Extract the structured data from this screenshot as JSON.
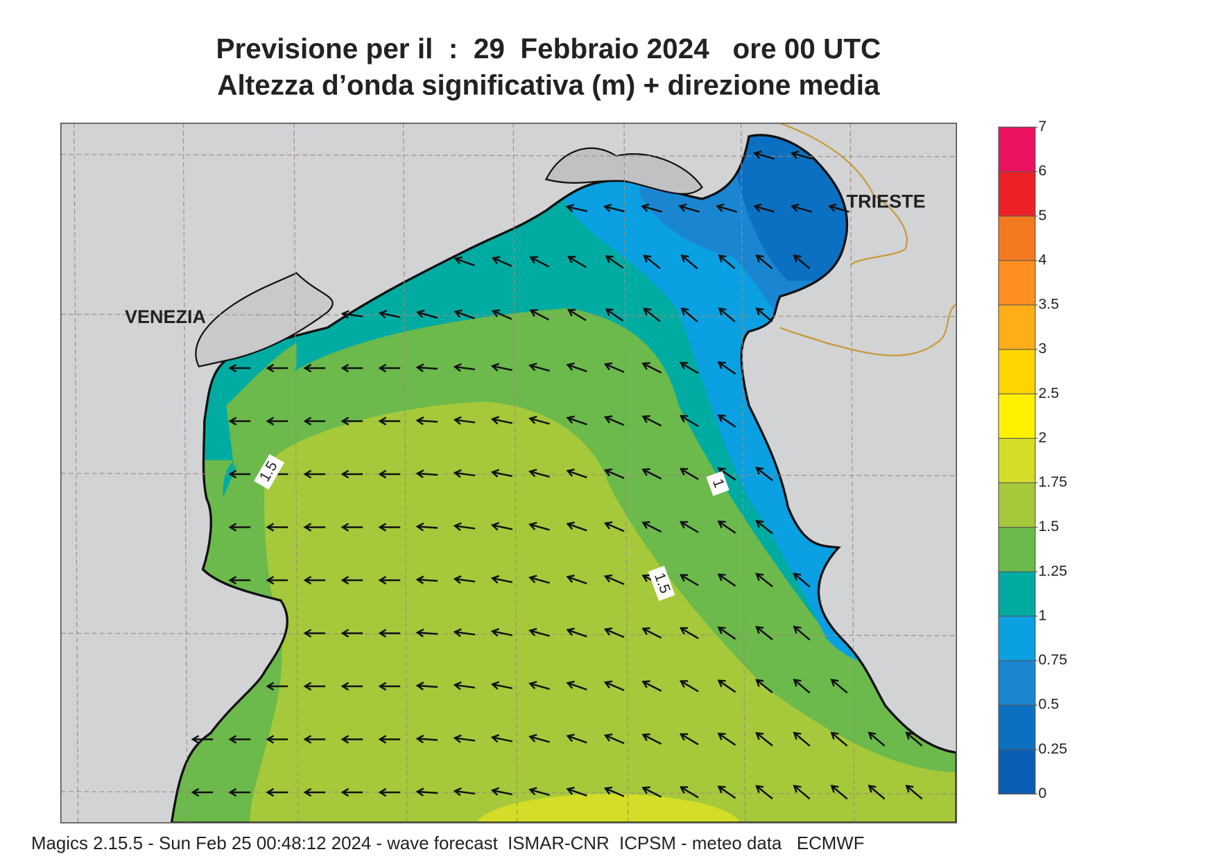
{
  "header": {
    "title": "Previsione per il  :  29  Febbraio 2024   ore 00 UTC",
    "subtitle": "Altezza d’onda significativa (m) + direzione media"
  },
  "map": {
    "places": [
      "VENEZIA",
      "TRIESTE"
    ],
    "contour_labels": [
      "1.5",
      "1",
      "1.5"
    ]
  },
  "legend": {
    "ticks": [
      0,
      0.25,
      0.5,
      0.75,
      1,
      1.25,
      1.5,
      1.75,
      2,
      2.5,
      3,
      3.5,
      4,
      5,
      6,
      7
    ],
    "colors": [
      "#0a5fb4",
      "#0c70c2",
      "#1a86d2",
      "#0aa0e2",
      "#00aba2",
      "#6cb94c",
      "#a5c93a",
      "#d4dd28",
      "#fff200",
      "#ffd400",
      "#ffae18",
      "#ff9020",
      "#f47a22",
      "#ec2228",
      "#ec1262"
    ]
  },
  "footer": "Magics 2.15.5 - Sun Feb 25 00:48:12 2024 - wave forecast  ISMAR-CNR  ICPSM - meteo data   ECMWF"
}
